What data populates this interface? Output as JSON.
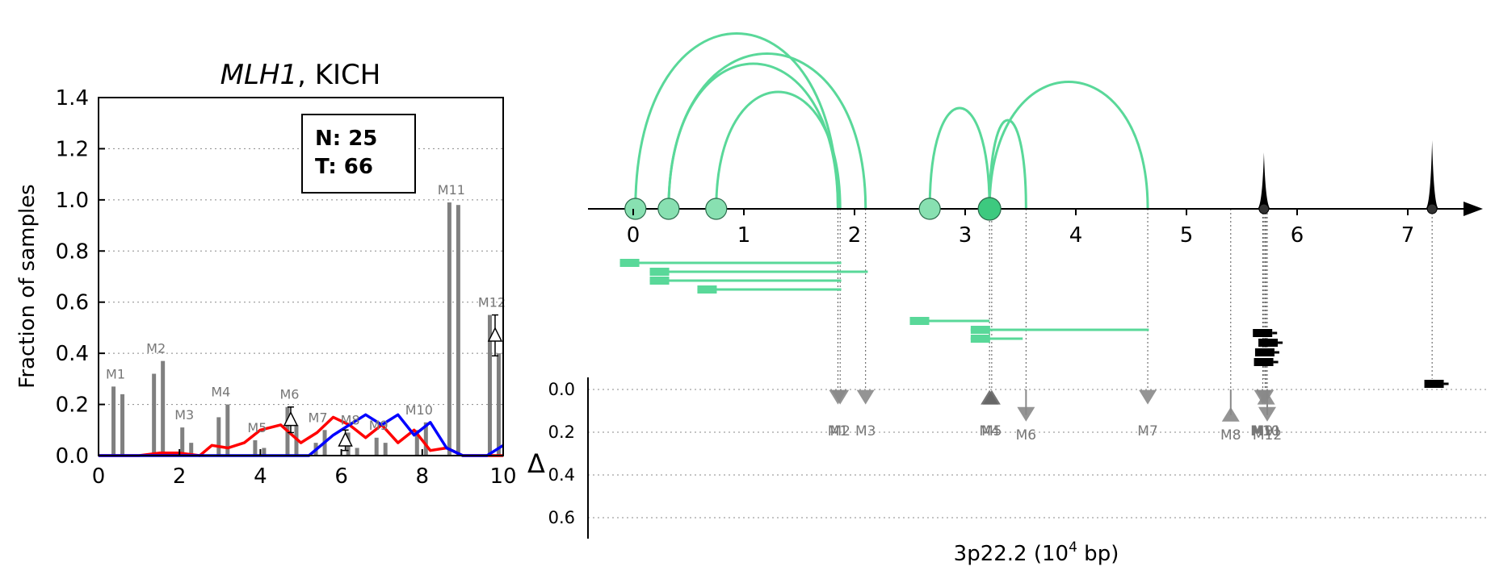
{
  "chart_data": [
    {
      "type": "bar",
      "title_italic": "MLH1",
      "title_rest": ", KICH",
      "ylabel": "Fraction of samples",
      "xlim": [
        0,
        10
      ],
      "ylim": [
        0,
        1.4
      ],
      "xticks": [
        "0",
        "2",
        "4",
        "6",
        "8",
        "10"
      ],
      "yticks": [
        "0.0",
        "0.2",
        "0.4",
        "0.6",
        "0.8",
        "1.0",
        "1.2",
        "1.4"
      ],
      "grid": "horizontal dotted",
      "legend": {
        "position": "top-right",
        "lines": [
          "N: 25",
          "T: 66"
        ]
      },
      "bars": [
        {
          "label": "M1",
          "center": 0.5,
          "normal": 0.27,
          "tumor": 0.24
        },
        {
          "label": "M2",
          "center": 1.5,
          "normal": 0.32,
          "tumor": 0.37
        },
        {
          "label": "M3",
          "center": 2.2,
          "normal": 0.11,
          "tumor": 0.05
        },
        {
          "label": "M4",
          "center": 3.1,
          "normal": 0.15,
          "tumor": 0.2
        },
        {
          "label": "M5",
          "center": 4.0,
          "normal": 0.06,
          "tumor": 0.03
        },
        {
          "label": "M6",
          "center": 4.8,
          "normal": 0.19,
          "tumor": 0.12
        },
        {
          "label": "M7",
          "center": 5.5,
          "normal": 0.05,
          "tumor": 0.1
        },
        {
          "label": "M8",
          "center": 6.3,
          "normal": 0.09,
          "tumor": 0.03
        },
        {
          "label": "M9",
          "center": 7.0,
          "normal": 0.07,
          "tumor": 0.05
        },
        {
          "label": "M10",
          "center": 8.0,
          "normal": 0.1,
          "tumor": 0.13
        },
        {
          "label": "M11",
          "center": 8.8,
          "normal": 0.99,
          "tumor": 0.98
        },
        {
          "label": "M12",
          "center": 9.8,
          "normal": 0.55,
          "tumor": 0.4
        }
      ],
      "deltas": [
        {
          "x": 4.75,
          "y": 0.14,
          "err": 0.05
        },
        {
          "x": 6.1,
          "y": 0.06,
          "err": 0.04
        },
        {
          "x": 9.8,
          "y": 0.47,
          "err": 0.08
        }
      ],
      "series": [
        {
          "color": "#ff0000",
          "points": [
            [
              0,
              0
            ],
            [
              0.5,
              0
            ],
            [
              1.0,
              0
            ],
            [
              1.5,
              0.01
            ],
            [
              2.0,
              0.01
            ],
            [
              2.5,
              0
            ],
            [
              2.8,
              0.04
            ],
            [
              3.2,
              0.03
            ],
            [
              3.6,
              0.05
            ],
            [
              4.0,
              0.1
            ],
            [
              4.5,
              0.12
            ],
            [
              5.0,
              0.05
            ],
            [
              5.4,
              0.09
            ],
            [
              5.8,
              0.15
            ],
            [
              6.2,
              0.12
            ],
            [
              6.6,
              0.07
            ],
            [
              7.0,
              0.12
            ],
            [
              7.4,
              0.05
            ],
            [
              7.8,
              0.1
            ],
            [
              8.2,
              0.02
            ],
            [
              8.6,
              0.03
            ],
            [
              9.0,
              0
            ],
            [
              10,
              0
            ]
          ]
        },
        {
          "color": "#0000ff",
          "points": [
            [
              0,
              0
            ],
            [
              5.2,
              0
            ],
            [
              5.8,
              0.08
            ],
            [
              6.2,
              0.12
            ],
            [
              6.6,
              0.16
            ],
            [
              7.0,
              0.12
            ],
            [
              7.4,
              0.16
            ],
            [
              7.8,
              0.08
            ],
            [
              8.2,
              0.13
            ],
            [
              8.6,
              0.03
            ],
            [
              9.0,
              0
            ],
            [
              9.6,
              0
            ],
            [
              10,
              0.04
            ]
          ]
        }
      ]
    },
    {
      "type": "diagram",
      "xlabel": "3p22.2 (10",
      "xlabel_sup": "4",
      "xlabel_tail": " bp)",
      "xticks": [
        "0",
        "1",
        "2",
        "3",
        "4",
        "5",
        "6",
        "7"
      ],
      "delta_symbol": "Δ",
      "delta_ticks": [
        "0.0",
        "0.2",
        "0.4",
        "0.6"
      ],
      "arc_color": "#59d899",
      "exon_color": "#59d899",
      "sites": [
        {
          "x": 0.02,
          "size": "small"
        },
        {
          "x": 0.32,
          "size": "small"
        },
        {
          "x": 0.75,
          "size": "small"
        },
        {
          "x": 2.68,
          "size": "small"
        },
        {
          "x": 3.22,
          "size": "large"
        }
      ],
      "arcs": [
        {
          "from": 0.02,
          "to": 1.85,
          "height": 0.87
        },
        {
          "from": 0.32,
          "to": 2.1,
          "height": 0.77
        },
        {
          "from": 0.32,
          "to": 1.85,
          "height": 0.72
        },
        {
          "from": 0.75,
          "to": 1.87,
          "height": 0.58
        },
        {
          "from": 2.68,
          "to": 3.22,
          "height": 0.5
        },
        {
          "from": 3.22,
          "to": 3.55,
          "height": 0.44
        },
        {
          "from": 3.22,
          "to": 4.65,
          "height": 0.63
        }
      ],
      "peaks": [
        {
          "x": 5.7,
          "height": 0.28
        },
        {
          "x": 7.22,
          "height": 0.34
        }
      ],
      "transcripts": [
        {
          "start": -0.12,
          "end": 1.88,
          "row": 0
        },
        {
          "start": 0.15,
          "end": 2.12,
          "row": 1
        },
        {
          "start": 0.15,
          "end": 1.88,
          "row": 2
        },
        {
          "start": 0.58,
          "end": 1.88,
          "row": 3
        },
        {
          "start": 2.5,
          "end": 3.22,
          "row": 4
        },
        {
          "start": 3.05,
          "end": 4.66,
          "row": 5
        },
        {
          "start": 3.05,
          "end": 3.52,
          "row": 6
        }
      ],
      "black_blocks": [
        {
          "x": 5.6,
          "dy": 0
        },
        {
          "x": 5.65,
          "dy": 1
        },
        {
          "x": 5.62,
          "dy": 2
        },
        {
          "x": 5.61,
          "dy": 3
        },
        {
          "x": 7.15,
          "dy": 4
        }
      ],
      "markers": [
        {
          "label": "M1",
          "x": 1.85,
          "delta": 0.04,
          "dir": "down",
          "shade": "#888888"
        },
        {
          "label": "M2",
          "x": 1.87,
          "delta": 0.04,
          "dir": "down",
          "shade": "#888888"
        },
        {
          "label": "M3",
          "x": 2.1,
          "delta": 0.04,
          "dir": "down",
          "shade": "#888888"
        },
        {
          "label": "M4",
          "x": 3.22,
          "delta": 0.04,
          "dir": "up",
          "shade": "#666666"
        },
        {
          "label": "M5",
          "x": 3.24,
          "delta": 0.04,
          "dir": "up",
          "shade": "#666666"
        },
        {
          "label": "M6",
          "x": 3.55,
          "delta": 0.12,
          "dir": "down",
          "shade": "#888888"
        },
        {
          "label": "M7",
          "x": 4.65,
          "delta": 0.04,
          "dir": "down",
          "shade": "#888888"
        },
        {
          "label": "M8",
          "x": 5.4,
          "delta": 0.12,
          "dir": "up",
          "shade": "#888888"
        },
        {
          "label": "M9",
          "x": 5.69,
          "delta": 0.04,
          "dir": "down",
          "shade": "#888888"
        },
        {
          "label": "M10",
          "x": 5.71,
          "delta": 0.04,
          "dir": "down",
          "shade": "#888888"
        },
        {
          "label": "M11",
          "x": 5.72,
          "delta": 0.04,
          "dir": "up",
          "shade": "#888888"
        },
        {
          "label": "M12",
          "x": 5.73,
          "delta": 0.12,
          "dir": "down",
          "shade": "#888888"
        }
      ]
    }
  ]
}
